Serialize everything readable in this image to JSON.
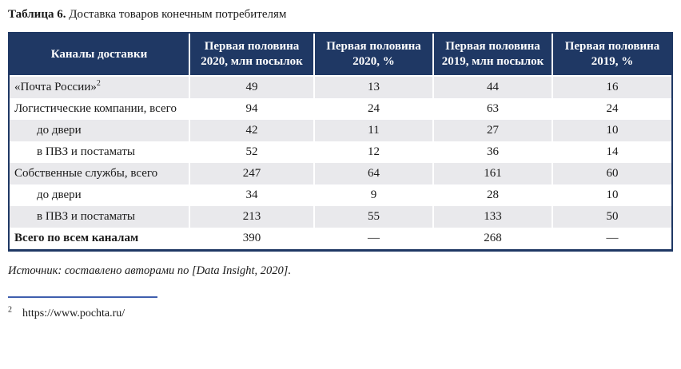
{
  "title": {
    "bold": "Таблица 6.",
    "rest": " Доставка товаров конечным потребителям"
  },
  "table": {
    "columns": [
      "Каналы доставки",
      "Первая половина 2020, млн посылок",
      "Первая половина 2020, %",
      "Первая половина 2019, млн посылок",
      "Первая половина 2019, %"
    ],
    "rows": [
      {
        "channel": "«Почта России»",
        "sup": "2",
        "values": [
          "49",
          "13",
          "44",
          "16"
        ]
      },
      {
        "channel": "Логистические компании, всего",
        "values": [
          "94",
          "24",
          "63",
          "24"
        ]
      },
      {
        "channel": "до двери",
        "values": [
          "42",
          "11",
          "27",
          "10"
        ]
      },
      {
        "channel": "в ПВЗ и постаматы",
        "values": [
          "52",
          "12",
          "36",
          "14"
        ]
      },
      {
        "channel": "Собственные службы, всего",
        "values": [
          "247",
          "64",
          "161",
          "60"
        ]
      },
      {
        "channel": "до двери",
        "values": [
          "34",
          "9",
          "28",
          "10"
        ]
      },
      {
        "channel": "в ПВЗ и постаматы",
        "values": [
          "213",
          "55",
          "133",
          "50"
        ]
      },
      {
        "channel": "Всего по всем каналам",
        "values": [
          "390",
          "—",
          "268",
          "—"
        ]
      }
    ]
  },
  "source": "Источник: составлено авторами по [Data Insight, 2020].",
  "footnote": {
    "marker": "2",
    "url": "https://www.pochta.ru/"
  },
  "colors": {
    "header_bg": "#1f3864",
    "header_text": "#ffffff",
    "row_alt_bg": "#e9e9ec",
    "table_border": "#1f3864",
    "footnote_rule": "#3f5fae",
    "body_text": "#1a1a1a"
  }
}
